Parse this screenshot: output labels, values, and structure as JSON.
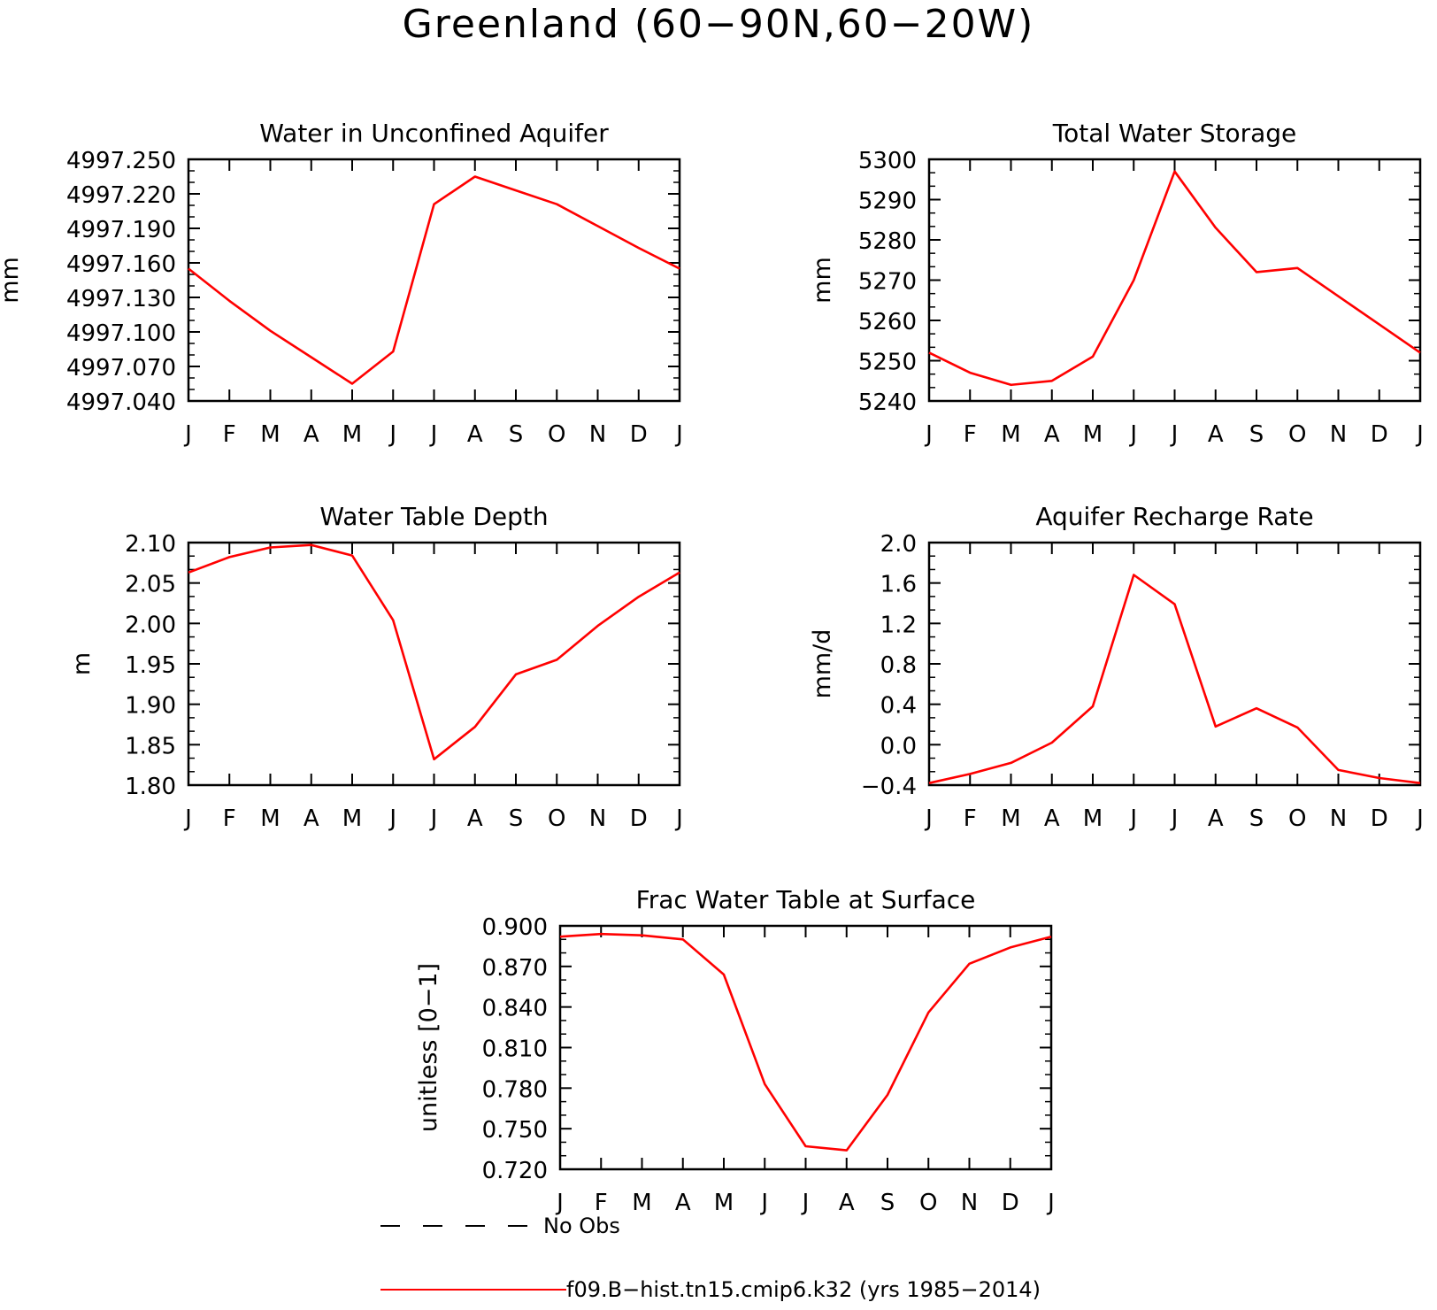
{
  "title": "Greenland (60−90N,60−20W)",
  "months": [
    "J",
    "F",
    "M",
    "A",
    "M",
    "J",
    "J",
    "A",
    "S",
    "O",
    "N",
    "D",
    "J"
  ],
  "legend": {
    "items": [
      {
        "label": "No Obs",
        "style": "dashed",
        "color": "#000000"
      },
      {
        "label": "f09.B−hist.tn15.cmip6.k32 (yrs 1985−2014)",
        "style": "solid",
        "color": "#ff0000"
      }
    ]
  },
  "chart_data": [
    {
      "type": "line",
      "title": "Water in Unconfined Aquifer",
      "ylabel": "mm",
      "ylim": [
        4997.04,
        4997.25
      ],
      "yticks": [
        "4997.040",
        "4997.070",
        "4997.100",
        "4997.130",
        "4997.160",
        "4997.190",
        "4997.220",
        "4997.250"
      ],
      "xlabel": "",
      "x": [
        "J",
        "F",
        "M",
        "A",
        "M",
        "J",
        "J",
        "A",
        "S",
        "O",
        "N",
        "D",
        "J"
      ],
      "series": [
        {
          "color": "#ff0000",
          "values": [
            4997.155,
            4997.127,
            4997.101,
            4997.078,
            4997.055,
            4997.083,
            4997.211,
            4997.235,
            4997.223,
            4997.211,
            4997.192,
            4997.173,
            4997.155
          ]
        }
      ]
    },
    {
      "type": "line",
      "title": "Total Water Storage",
      "ylabel": "mm",
      "ylim": [
        5240,
        5300
      ],
      "yticks": [
        "5240",
        "5250",
        "5260",
        "5270",
        "5280",
        "5290",
        "5300"
      ],
      "xlabel": "",
      "x": [
        "J",
        "F",
        "M",
        "A",
        "M",
        "J",
        "J",
        "A",
        "S",
        "O",
        "N",
        "D",
        "J"
      ],
      "series": [
        {
          "color": "#ff0000",
          "values": [
            5252,
            5247,
            5244,
            5245,
            5251,
            5270,
            5297,
            5283,
            5272,
            5273,
            5266,
            5259,
            5252
          ]
        }
      ]
    },
    {
      "type": "line",
      "title": "Water Table Depth",
      "ylabel": "m",
      "ylim": [
        1.8,
        2.1
      ],
      "yticks": [
        "1.80",
        "1.85",
        "1.90",
        "1.95",
        "2.00",
        "2.05",
        "2.10"
      ],
      "xlabel": "",
      "x": [
        "J",
        "F",
        "M",
        "A",
        "M",
        "J",
        "J",
        "A",
        "S",
        "O",
        "N",
        "D",
        "J"
      ],
      "series": [
        {
          "color": "#ff0000",
          "values": [
            2.063,
            2.082,
            2.094,
            2.097,
            2.084,
            2.004,
            1.832,
            1.872,
            1.937,
            1.955,
            1.997,
            2.033,
            2.063
          ]
        }
      ]
    },
    {
      "type": "line",
      "title": "Aquifer Recharge Rate",
      "ylabel": "mm/d",
      "ylim": [
        -0.4,
        2.0
      ],
      "yticks": [
        "−0.4",
        "0.0",
        "0.4",
        "0.8",
        "1.2",
        "1.6",
        "2.0"
      ],
      "xlabel": "",
      "x": [
        "J",
        "F",
        "M",
        "A",
        "M",
        "J",
        "J",
        "A",
        "S",
        "O",
        "N",
        "D",
        "J"
      ],
      "series": [
        {
          "color": "#ff0000",
          "values": [
            -0.38,
            -0.29,
            -0.18,
            0.02,
            0.38,
            1.68,
            1.39,
            0.18,
            0.36,
            0.17,
            -0.25,
            -0.33,
            -0.38
          ]
        }
      ]
    },
    {
      "type": "line",
      "title": "Frac Water Table at Surface",
      "ylabel": "unitless [0−1]",
      "ylim": [
        0.72,
        0.9
      ],
      "yticks": [
        "0.720",
        "0.750",
        "0.780",
        "0.810",
        "0.840",
        "0.870",
        "0.900"
      ],
      "xlabel": "",
      "x": [
        "J",
        "F",
        "M",
        "A",
        "M",
        "J",
        "J",
        "A",
        "S",
        "O",
        "N",
        "D",
        "J"
      ],
      "series": [
        {
          "color": "#ff0000",
          "values": [
            0.892,
            0.894,
            0.893,
            0.89,
            0.864,
            0.783,
            0.737,
            0.734,
            0.775,
            0.836,
            0.872,
            0.884,
            0.892
          ]
        }
      ]
    }
  ]
}
